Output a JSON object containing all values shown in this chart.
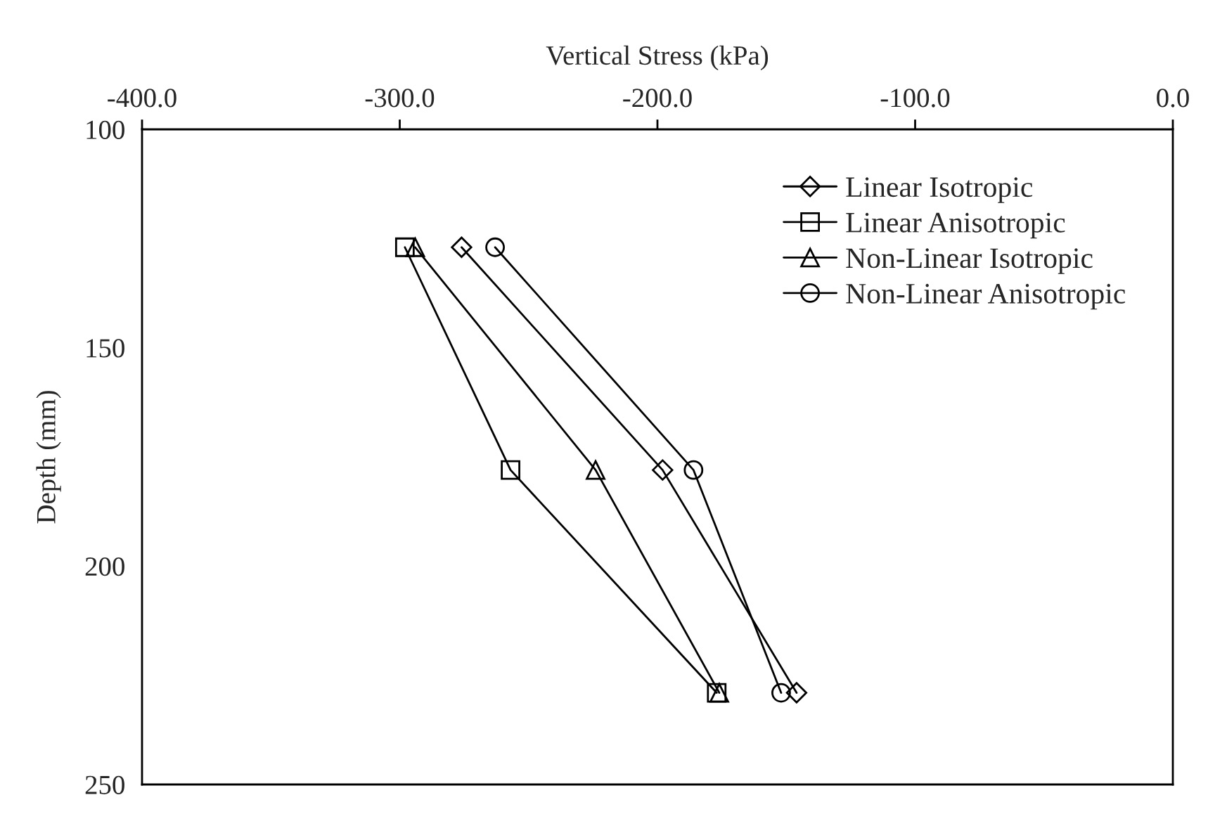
{
  "chart_data": {
    "type": "line",
    "xlabel": "Vertical Stress (kPa)",
    "ylabel": "Depth (mm)",
    "xlim": [
      -400,
      0
    ],
    "xticks": [
      {
        "value": -400,
        "label": "-400.0"
      },
      {
        "value": -300,
        "label": "-300.0"
      },
      {
        "value": -200,
        "label": "-200.0"
      },
      {
        "value": -100,
        "label": "-100.0"
      },
      {
        "value": 0,
        "label": "0.0"
      }
    ],
    "ylim": [
      250,
      100
    ],
    "yticks": [
      100,
      150,
      200,
      250
    ],
    "grid": false,
    "legend": "top right",
    "line_style": "solid",
    "series": [
      {
        "name": "Linear Isotropic",
        "color": "#000000",
        "marker": "diamond",
        "x": [
          -276,
          -198,
          -146
        ],
        "values": [
          127,
          178,
          229
        ]
      },
      {
        "name": "Linear Anisotropic",
        "color": "#000000",
        "marker": "square",
        "x": [
          -298,
          -257,
          -177
        ],
        "values": [
          127,
          178,
          229
        ]
      },
      {
        "name": "Non-Linear Isotropic",
        "color": "#000000",
        "marker": "triangle",
        "x": [
          -294,
          -224,
          -176
        ],
        "values": [
          127,
          178,
          229
        ]
      },
      {
        "name": "Non-Linear Anisotropic",
        "color": "#000000",
        "marker": "circle",
        "x": [
          -263,
          -186,
          -152
        ],
        "values": [
          127,
          178,
          229
        ]
      }
    ]
  }
}
